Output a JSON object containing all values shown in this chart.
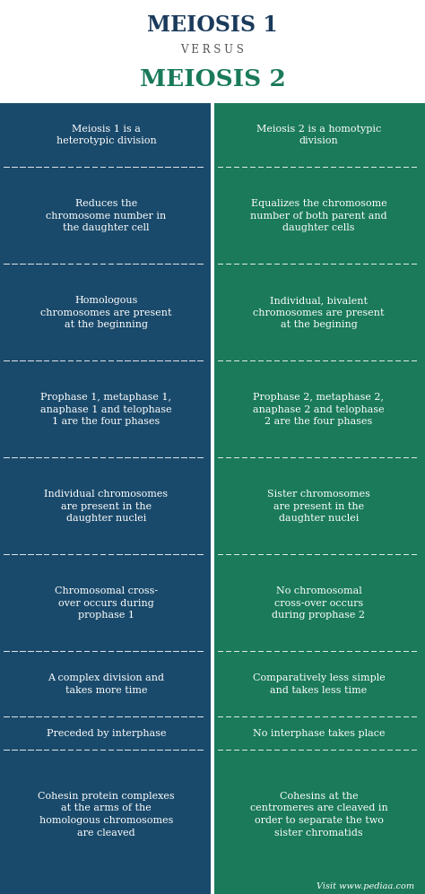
{
  "title1": "MEIOSIS 1",
  "versus": "VERSUS",
  "title2": "MEIOSIS 2",
  "title1_color": "#1a3a5c",
  "versus_color": "#555555",
  "title2_color": "#1a7a5a",
  "left_bg": "#1a4a6b",
  "right_bg": "#1a7a5a",
  "text_color": "#ffffff",
  "header_bg": "#ffffff",
  "footer_text": "Visit www.pediaa.com",
  "left_items": [
    "Meiosis 1 is a\nheterotypic division",
    "Reduces the\nchromosome number in\nthe daughter cell",
    "Homologous\nchromosomes are present\nat the beginning",
    "Prophase 1, metaphase 1,\nanaphase 1 and telophase\n1 are the four phases",
    "Individual chromosomes\nare present in the\ndaughter nuclei",
    "Chromosomal cross-\nover occurs during\nprophase 1",
    "A complex division and\ntakes more time",
    "Preceded by interphase",
    "Cohesin protein complexes\nat the arms of the\nhomologous chromosomes\nare cleaved"
  ],
  "right_items": [
    "Meiosis 2 is a homotypic\ndivision",
    "Equalizes the chromosome\nnumber of both parent and\ndaughter cells",
    "Individual, bivalent\nchromosomes are present\nat the begining",
    "Prophase 2, metaphase 2,\nanaphase 2 and telophase\n2 are the four phases",
    "Sister chromosomes\nare present in the\ndaughter nuclei",
    "No chromosomal\ncross-over occurs\nduring prophase 2",
    "Comparatively less simple\nand takes less time",
    "No interphase takes place",
    "Cohesins at the\ncentromeres are cleaved in\norder to separate the two\nsister chromatids"
  ],
  "row_lines": [
    2,
    3,
    3,
    3,
    3,
    3,
    2,
    1,
    4
  ]
}
